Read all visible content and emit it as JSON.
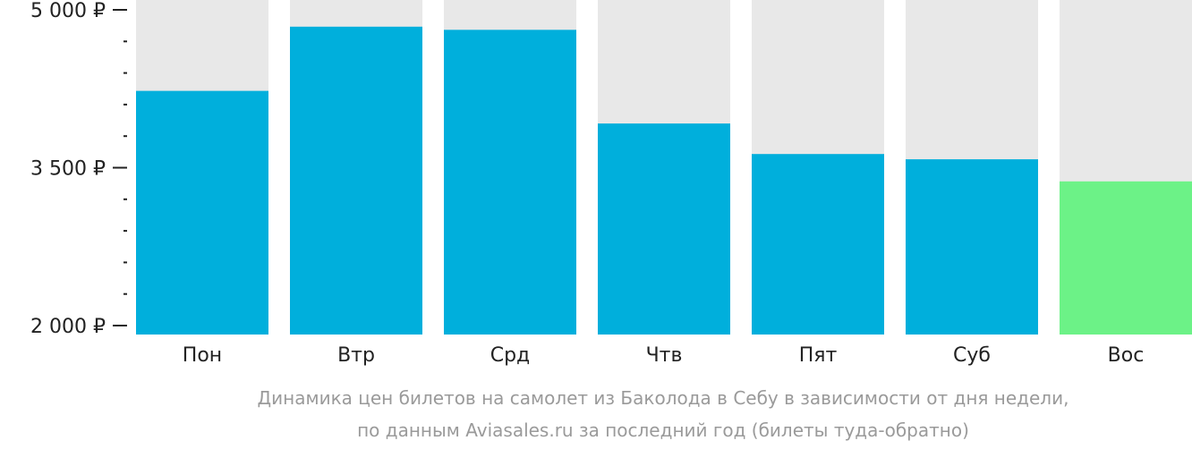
{
  "chart_data": {
    "type": "bar",
    "categories": [
      "Пон",
      "Втр",
      "Срд",
      "Чтв",
      "Пят",
      "Суб",
      "Вос"
    ],
    "values": [
      4230,
      4840,
      4810,
      3920,
      3630,
      3580,
      3370
    ],
    "ylim": [
      2000,
      5000
    ],
    "yticks": [
      {
        "value": 5000,
        "label": "5 000 ₽"
      },
      {
        "value": 3500,
        "label": "3 500 ₽"
      },
      {
        "value": 2000,
        "label": "2 000 ₽"
      }
    ],
    "minor_step": 300,
    "highlight_index": 6,
    "colors": {
      "bar": "#00afdc",
      "highlight": "#6cf287",
      "background_bar": "#e8e8e8",
      "axis": "#222222"
    },
    "caption": [
      "Динамика цен билетов на самолет из Баколода в Себу в зависимости от дня недели,",
      "по данным Aviasales.ru за последний год (билеты туда-обратно)"
    ]
  }
}
